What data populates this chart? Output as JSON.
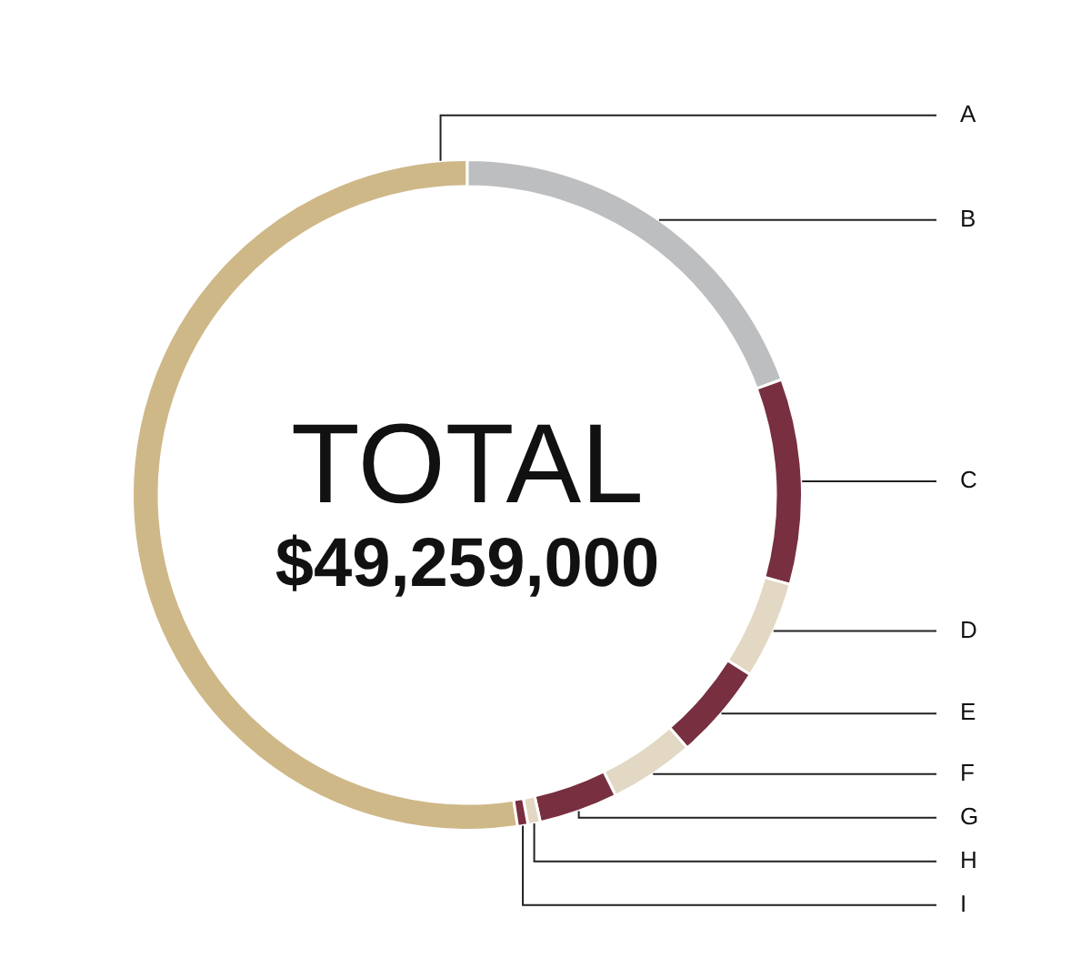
{
  "chart_data": {
    "type": "donut",
    "title": "TOTAL",
    "subtitle": "$49,259,000",
    "categories": [
      "A",
      "B",
      "C",
      "D",
      "E",
      "F",
      "G",
      "H",
      "I"
    ],
    "values": [
      52.4,
      19.4,
      9.9,
      4.7,
      4.6,
      4.1,
      3.8,
      0.6,
      0.5
    ],
    "colors": [
      "#cfb888",
      "#bdbec0",
      "#782f40",
      "#e2d8c3",
      "#782f40",
      "#e2d8c3",
      "#782f40",
      "#e2d8c3",
      "#782f40"
    ],
    "legend": false
  }
}
